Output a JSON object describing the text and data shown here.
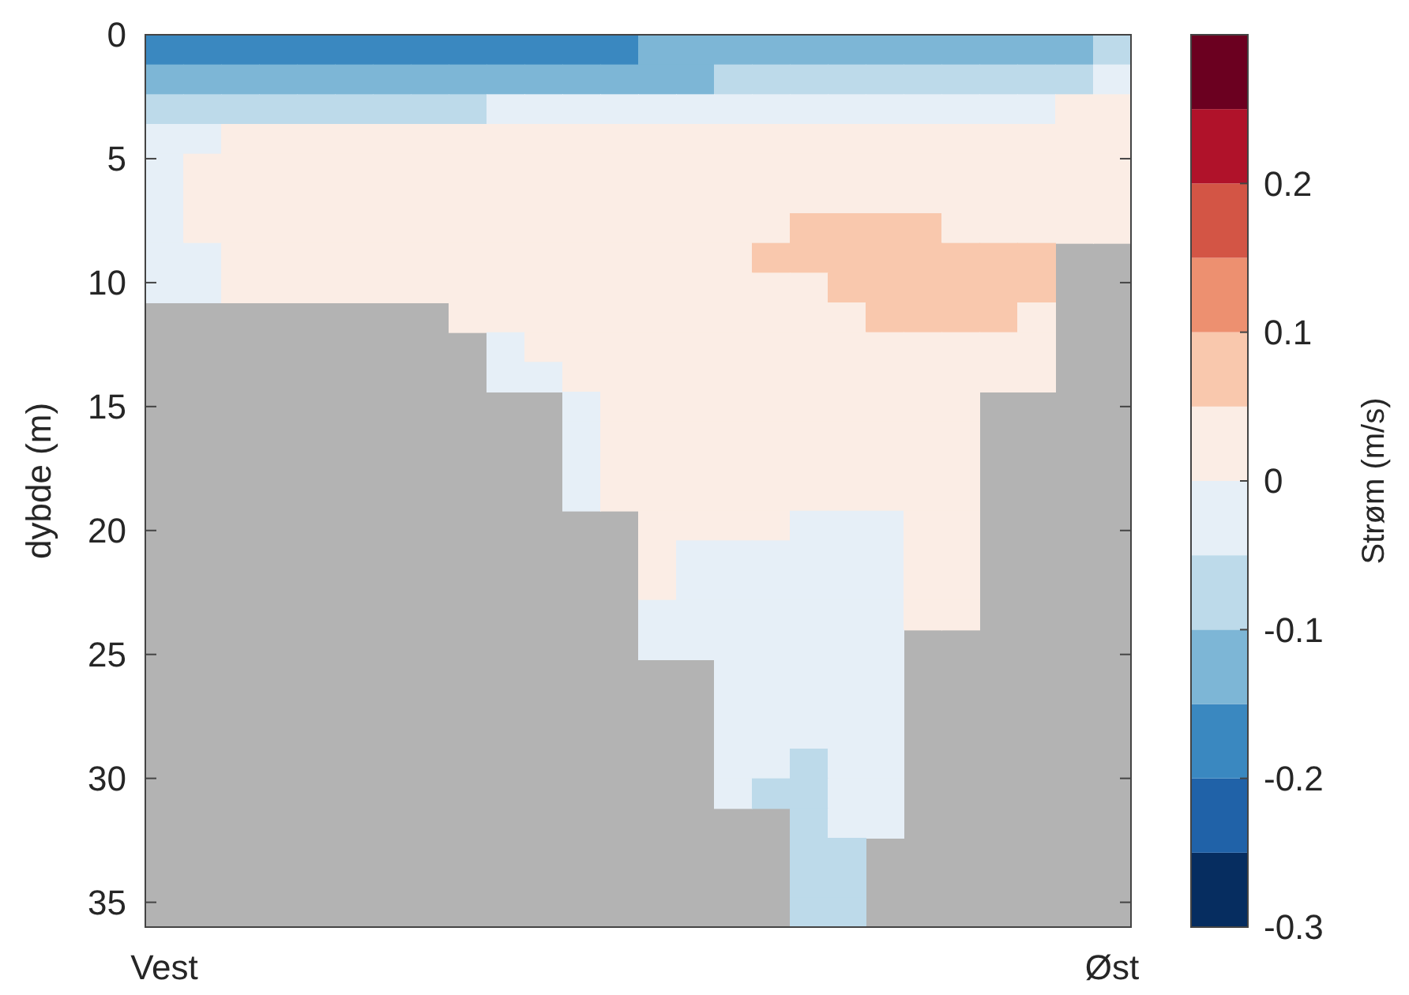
{
  "chart_data": {
    "type": "heatmap",
    "ylabel": "dybde (m)",
    "clabel": "Strøm (m/s)",
    "categories": [
      "Vest",
      null,
      null,
      null,
      null,
      null,
      null,
      null,
      null,
      null,
      null,
      null,
      null,
      null,
      null,
      null,
      null,
      null,
      null,
      null,
      null,
      null,
      null,
      null,
      null,
      "Øst"
    ],
    "ylim": [
      36,
      0
    ],
    "yticks": [
      0,
      5,
      10,
      15,
      20,
      25,
      30,
      35
    ],
    "clim": [
      -0.3,
      0.3
    ],
    "cticks": [
      -0.3,
      -0.2,
      -0.1,
      0,
      0.1,
      0.2
    ],
    "colors": [
      "#062d60",
      "#2062a8",
      "#3a88c0",
      "#7db6d6",
      "#bddaea",
      "#e6eff7",
      "#fbede5",
      "#f9c8ad",
      "#ed9070",
      "#d35545",
      "#b0122a",
      "#6b0020"
    ],
    "cells": [
      [
        -0.175,
        -0.175,
        -0.175,
        -0.175,
        -0.175,
        -0.175,
        -0.175,
        -0.175,
        -0.175,
        -0.175,
        -0.175,
        -0.175,
        -0.175,
        -0.125,
        -0.125,
        -0.125,
        -0.125,
        -0.125,
        -0.125,
        -0.125,
        -0.125,
        -0.125,
        -0.125,
        -0.125,
        -0.125,
        -0.075
      ],
      [
        -0.125,
        -0.125,
        -0.125,
        -0.125,
        -0.125,
        -0.125,
        -0.125,
        -0.125,
        -0.125,
        -0.125,
        -0.125,
        -0.125,
        -0.125,
        -0.125,
        -0.125,
        -0.075,
        -0.075,
        -0.075,
        -0.075,
        -0.075,
        -0.075,
        -0.075,
        -0.075,
        -0.075,
        -0.075,
        -0.025
      ],
      [
        -0.075,
        -0.075,
        -0.075,
        -0.075,
        -0.075,
        -0.075,
        -0.075,
        -0.075,
        -0.075,
        -0.025,
        -0.025,
        -0.025,
        -0.025,
        -0.025,
        -0.025,
        -0.025,
        -0.025,
        -0.025,
        -0.025,
        -0.025,
        -0.025,
        -0.025,
        -0.025,
        -0.025,
        0.025,
        0.025
      ],
      [
        -0.025,
        -0.025,
        0.025,
        0.025,
        0.025,
        0.025,
        0.025,
        0.025,
        0.025,
        0.025,
        0.025,
        0.025,
        0.025,
        0.025,
        0.025,
        0.025,
        0.025,
        0.025,
        0.025,
        0.025,
        0.025,
        0.025,
        0.025,
        0.025,
        0.025,
        0.025
      ],
      [
        -0.025,
        0.025,
        0.025,
        0.025,
        0.025,
        0.025,
        0.025,
        0.025,
        0.025,
        0.025,
        0.025,
        0.025,
        0.025,
        0.025,
        0.025,
        0.025,
        0.025,
        0.025,
        0.025,
        0.025,
        0.025,
        0.025,
        0.025,
        0.025,
        0.025,
        0.025
      ],
      [
        -0.025,
        0.025,
        0.025,
        0.025,
        0.025,
        0.025,
        0.025,
        0.025,
        0.025,
        0.025,
        0.025,
        0.025,
        0.025,
        0.025,
        0.025,
        0.025,
        0.025,
        0.025,
        0.025,
        0.025,
        0.025,
        0.025,
        0.025,
        0.025,
        0.025,
        0.025
      ],
      [
        -0.025,
        0.025,
        0.025,
        0.025,
        0.025,
        0.025,
        0.025,
        0.025,
        0.025,
        0.025,
        0.025,
        0.025,
        0.025,
        0.025,
        0.025,
        0.025,
        0.025,
        0.075,
        0.075,
        0.075,
        0.075,
        0.025,
        0.025,
        0.025,
        0.025,
        0.025
      ],
      [
        -0.025,
        -0.025,
        0.025,
        0.025,
        0.025,
        0.025,
        0.025,
        0.025,
        0.025,
        0.025,
        0.025,
        0.025,
        0.025,
        0.025,
        0.025,
        0.025,
        0.075,
        0.075,
        0.075,
        0.075,
        0.075,
        0.075,
        0.075,
        0.075,
        null,
        null
      ],
      [
        -0.025,
        -0.025,
        0.025,
        0.025,
        0.025,
        0.025,
        0.025,
        0.025,
        0.025,
        0.025,
        0.025,
        0.025,
        0.025,
        0.025,
        0.025,
        0.025,
        0.025,
        0.025,
        0.075,
        0.075,
        0.075,
        0.075,
        0.075,
        0.075,
        null,
        null
      ],
      [
        null,
        null,
        null,
        null,
        null,
        null,
        null,
        null,
        0.025,
        0.025,
        0.025,
        0.025,
        0.025,
        0.025,
        0.025,
        0.025,
        0.025,
        0.025,
        0.025,
        0.075,
        0.075,
        0.075,
        0.075,
        0.025,
        null,
        null
      ],
      [
        null,
        null,
        null,
        null,
        null,
        null,
        null,
        null,
        null,
        -0.025,
        0.025,
        0.025,
        0.025,
        0.025,
        0.025,
        0.025,
        0.025,
        0.025,
        0.025,
        0.025,
        0.025,
        0.025,
        0.025,
        0.025,
        null,
        null
      ],
      [
        null,
        null,
        null,
        null,
        null,
        null,
        null,
        null,
        null,
        -0.025,
        -0.025,
        0.025,
        0.025,
        0.025,
        0.025,
        0.025,
        0.025,
        0.025,
        0.025,
        0.025,
        0.025,
        0.025,
        0.025,
        0.025,
        null,
        null
      ],
      [
        null,
        null,
        null,
        null,
        null,
        null,
        null,
        null,
        null,
        null,
        null,
        -0.025,
        0.025,
        0.025,
        0.025,
        0.025,
        0.025,
        0.025,
        0.025,
        0.025,
        0.025,
        0.025,
        null,
        null,
        null,
        null
      ],
      [
        null,
        null,
        null,
        null,
        null,
        null,
        null,
        null,
        null,
        null,
        null,
        -0.025,
        0.025,
        0.025,
        0.025,
        0.025,
        0.025,
        0.025,
        0.025,
        0.025,
        0.025,
        0.025,
        null,
        null,
        null,
        null
      ],
      [
        null,
        null,
        null,
        null,
        null,
        null,
        null,
        null,
        null,
        null,
        null,
        -0.025,
        0.025,
        0.025,
        0.025,
        0.025,
        0.025,
        0.025,
        0.025,
        0.025,
        0.025,
        0.025,
        null,
        null,
        null,
        null
      ],
      [
        null,
        null,
        null,
        null,
        null,
        null,
        null,
        null,
        null,
        null,
        null,
        -0.025,
        0.025,
        0.025,
        0.025,
        0.025,
        0.025,
        0.025,
        0.025,
        0.025,
        0.025,
        0.025,
        null,
        null,
        null,
        null
      ],
      [
        null,
        null,
        null,
        null,
        null,
        null,
        null,
        null,
        null,
        null,
        null,
        null,
        null,
        0.025,
        0.025,
        0.025,
        0.025,
        -0.025,
        -0.025,
        -0.025,
        0.025,
        0.025,
        null,
        null,
        null,
        null
      ],
      [
        null,
        null,
        null,
        null,
        null,
        null,
        null,
        null,
        null,
        null,
        null,
        null,
        null,
        0.025,
        -0.025,
        -0.025,
        -0.025,
        -0.025,
        -0.025,
        -0.025,
        0.025,
        0.025,
        null,
        null,
        null,
        null
      ],
      [
        null,
        null,
        null,
        null,
        null,
        null,
        null,
        null,
        null,
        null,
        null,
        null,
        null,
        0.025,
        -0.025,
        -0.025,
        -0.025,
        -0.025,
        -0.025,
        -0.025,
        0.025,
        0.025,
        null,
        null,
        null,
        null
      ],
      [
        null,
        null,
        null,
        null,
        null,
        null,
        null,
        null,
        null,
        null,
        null,
        null,
        null,
        -0.025,
        -0.025,
        -0.025,
        -0.025,
        -0.025,
        -0.025,
        -0.025,
        0.025,
        0.025,
        null,
        null,
        null,
        null
      ],
      [
        null,
        null,
        null,
        null,
        null,
        null,
        null,
        null,
        null,
        null,
        null,
        null,
        null,
        -0.025,
        -0.025,
        -0.025,
        -0.025,
        -0.025,
        -0.025,
        -0.025,
        null,
        null,
        null,
        null,
        null,
        null
      ],
      [
        null,
        null,
        null,
        null,
        null,
        null,
        null,
        null,
        null,
        null,
        null,
        null,
        null,
        null,
        null,
        -0.025,
        -0.025,
        -0.025,
        -0.025,
        -0.025,
        null,
        null,
        null,
        null,
        null,
        null
      ],
      [
        null,
        null,
        null,
        null,
        null,
        null,
        null,
        null,
        null,
        null,
        null,
        null,
        null,
        null,
        null,
        -0.025,
        -0.025,
        -0.025,
        -0.025,
        -0.025,
        null,
        null,
        null,
        null,
        null,
        null
      ],
      [
        null,
        null,
        null,
        null,
        null,
        null,
        null,
        null,
        null,
        null,
        null,
        null,
        null,
        null,
        null,
        -0.025,
        -0.025,
        -0.025,
        -0.025,
        -0.025,
        null,
        null,
        null,
        null,
        null,
        null
      ],
      [
        null,
        null,
        null,
        null,
        null,
        null,
        null,
        null,
        null,
        null,
        null,
        null,
        null,
        null,
        null,
        -0.025,
        -0.025,
        -0.075,
        -0.025,
        -0.025,
        null,
        null,
        null,
        null,
        null,
        null
      ],
      [
        null,
        null,
        null,
        null,
        null,
        null,
        null,
        null,
        null,
        null,
        null,
        null,
        null,
        null,
        null,
        -0.025,
        -0.075,
        -0.075,
        -0.025,
        -0.025,
        null,
        null,
        null,
        null,
        null,
        null
      ],
      [
        null,
        null,
        null,
        null,
        null,
        null,
        null,
        null,
        null,
        null,
        null,
        null,
        null,
        null,
        null,
        null,
        null,
        -0.075,
        -0.025,
        -0.025,
        null,
        null,
        null,
        null,
        null,
        null
      ],
      [
        null,
        null,
        null,
        null,
        null,
        null,
        null,
        null,
        null,
        null,
        null,
        null,
        null,
        null,
        null,
        null,
        null,
        -0.075,
        -0.075,
        null,
        null,
        null,
        null,
        null,
        null,
        null
      ],
      [
        null,
        null,
        null,
        null,
        null,
        null,
        null,
        null,
        null,
        null,
        null,
        null,
        null,
        null,
        null,
        null,
        null,
        -0.075,
        -0.075,
        null,
        null,
        null,
        null,
        null,
        null,
        null
      ],
      [
        null,
        null,
        null,
        null,
        null,
        null,
        null,
        null,
        null,
        null,
        null,
        null,
        null,
        null,
        null,
        null,
        null,
        -0.075,
        -0.075,
        null,
        null,
        null,
        null,
        null,
        null,
        null
      ]
    ]
  }
}
